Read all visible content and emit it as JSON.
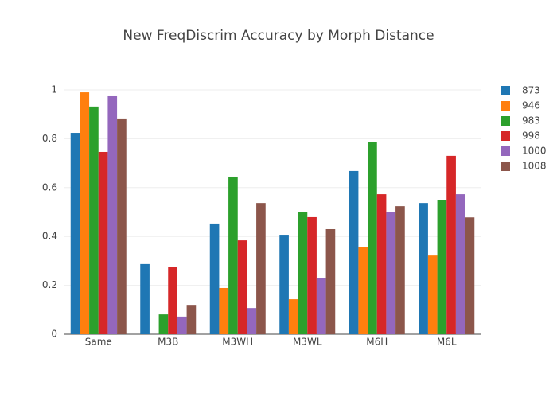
{
  "chart_data": {
    "type": "bar",
    "title": "New FreqDiscrim Accuracy by Morph Distance",
    "categories": [
      "Same",
      "M3B",
      "M3WH",
      "M3WL",
      "M6H",
      "M6L"
    ],
    "series": [
      {
        "name": "873",
        "color": "#1f77b4",
        "values": [
          0.824,
          0.287,
          0.453,
          0.407,
          0.668,
          0.537
        ]
      },
      {
        "name": "946",
        "color": "#ff7f0e",
        "values": [
          0.99,
          0,
          0.189,
          0.143,
          0.358,
          0.322
        ]
      },
      {
        "name": "983",
        "color": "#2ca02c",
        "values": [
          0.932,
          0.081,
          0.645,
          0.5,
          0.788,
          0.55
        ]
      },
      {
        "name": "998",
        "color": "#d62728",
        "values": [
          0.746,
          0.274,
          0.384,
          0.479,
          0.573,
          0.73
        ]
      },
      {
        "name": "1000",
        "color": "#9467bd",
        "values": [
          0.974,
          0.072,
          0.107,
          0.228,
          0.5,
          0.573
        ]
      },
      {
        "name": "1008",
        "color": "#8c564b",
        "values": [
          0.883,
          0.12,
          0.537,
          0.43,
          0.524,
          0.478
        ]
      }
    ],
    "ylim": [
      0,
      1
    ],
    "yticks": [
      0,
      0.2,
      0.4,
      0.6,
      0.8,
      1
    ],
    "grid": true,
    "legend": "right"
  }
}
